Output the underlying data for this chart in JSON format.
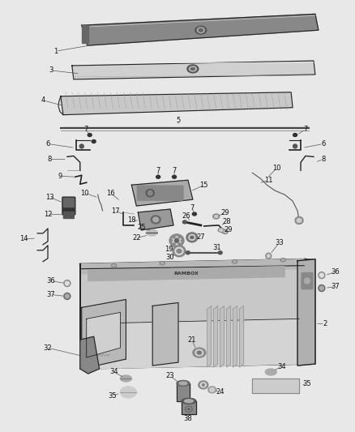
{
  "bg_color": "#e8e8e8",
  "fig_width": 4.38,
  "fig_height": 5.33,
  "dpi": 100,
  "label_fontsize": 6.0,
  "label_color": "#111111",
  "line_color": "#222222"
}
